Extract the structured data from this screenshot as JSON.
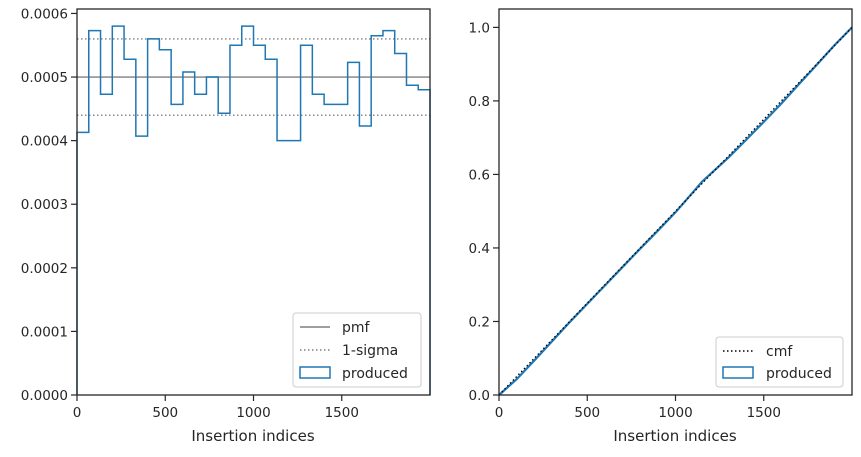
{
  "chart_data": [
    {
      "type": "step",
      "xlabel": "Insertion indices",
      "ylabel": "",
      "xlim": [
        0,
        2000
      ],
      "ylim": [
        0,
        0.000607
      ],
      "xticks": [
        0,
        500,
        1000,
        1500
      ],
      "xtick_labels": [
        "0",
        "500",
        "1000",
        "1500"
      ],
      "yticks": [
        0,
        0.0001,
        0.0002,
        0.0003,
        0.0004,
        0.0005,
        0.0006
      ],
      "ytick_labels": [
        "0.0000",
        "0.0001",
        "0.0002",
        "0.0003",
        "0.0004",
        "0.0005",
        "0.0006"
      ],
      "pmf": 0.0005,
      "sigma_band": [
        0.00044,
        0.00056
      ],
      "histogram": {
        "bin_width": 66.67,
        "values": [
          0.000413,
          0.000573,
          0.000473,
          0.00058,
          0.000528,
          0.000407,
          0.00056,
          0.000543,
          0.000457,
          0.000508,
          0.000473,
          0.0005,
          0.000443,
          0.00055,
          0.00058,
          0.00055,
          0.000528,
          0.0004,
          0.0004,
          0.00055,
          0.000473,
          0.000457,
          0.000457,
          0.000523,
          0.000423,
          0.000565,
          0.000573,
          0.000537,
          0.000487,
          0.00048
        ]
      },
      "legend": {
        "position": "lower-right",
        "entries": [
          {
            "label": "pmf",
            "style": "solid-line",
            "color": "#7f7f7f"
          },
          {
            "label": "1-sigma",
            "style": "dotted-line",
            "color": "#7f7f7f"
          },
          {
            "label": "produced",
            "style": "step-box",
            "color": "#1f77b4"
          }
        ]
      }
    },
    {
      "type": "line",
      "xlabel": "Insertion indices",
      "ylabel": "",
      "xlim": [
        0,
        2000
      ],
      "ylim": [
        0,
        1.05
      ],
      "xticks": [
        0,
        500,
        1000,
        1500
      ],
      "xtick_labels": [
        "0",
        "500",
        "1000",
        "1500"
      ],
      "yticks": [
        0,
        0.2,
        0.4,
        0.6,
        0.8,
        1.0
      ],
      "ytick_labels": [
        "0.0",
        "0.2",
        "0.4",
        "0.6",
        "0.8",
        "1.0"
      ],
      "cmf": {
        "x": [
          0,
          2000
        ],
        "y": [
          0,
          1
        ]
      },
      "produced_cdf": {
        "x": [
          0,
          100,
          200,
          300,
          400,
          500,
          600,
          700,
          800,
          900,
          1000,
          1100,
          1150,
          1200,
          1300,
          1400,
          1500,
          1600,
          1700,
          1800,
          1900,
          2000
        ],
        "y": [
          0,
          0.043,
          0.094,
          0.146,
          0.198,
          0.248,
          0.298,
          0.348,
          0.398,
          0.447,
          0.497,
          0.552,
          0.58,
          0.602,
          0.646,
          0.694,
          0.743,
          0.793,
          0.846,
          0.898,
          0.951,
          1.0
        ]
      },
      "legend": {
        "position": "lower-right",
        "entries": [
          {
            "label": "cmf",
            "style": "dotted-line",
            "color": "#000000"
          },
          {
            "label": "produced",
            "style": "step-box",
            "color": "#1f77b4"
          }
        ]
      }
    }
  ]
}
